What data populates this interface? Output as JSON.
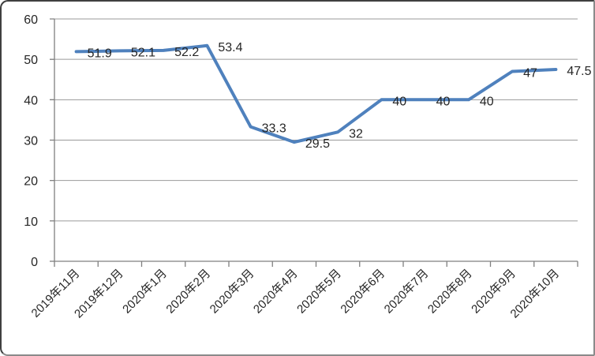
{
  "chart_data": {
    "type": "line",
    "title": "",
    "xlabel": "",
    "ylabel": "",
    "categories": [
      "2019年11月",
      "2019年12月",
      "2020年1月",
      "2020年2月",
      "2020年3月",
      "2020年4月",
      "2020年5月",
      "2020年6月",
      "2020年7月",
      "2020年8月",
      "2020年9月",
      "2020年10月"
    ],
    "series": [
      {
        "name": "series-1",
        "values": [
          51.9,
          52.1,
          52.2,
          53.4,
          33.3,
          29.5,
          32,
          40,
          40,
          40,
          47,
          47.5
        ],
        "data_labels": [
          "51.9",
          "52.1",
          "52.2",
          "53.4",
          "33.3",
          "29.5",
          "32",
          "40",
          "40",
          "40",
          "47",
          "47.5"
        ]
      }
    ],
    "ylim": [
      0,
      60
    ],
    "yticks": [
      0,
      10,
      20,
      30,
      40,
      50,
      60
    ],
    "grid": true,
    "legend": "none",
    "x_labels_rotation_deg": -45,
    "colors": {
      "line": "#4F81BD",
      "gridline": "#9a9a9a",
      "axis": "#808080",
      "tick": "#808080",
      "text": "#262626",
      "plot_background": "#ffffff"
    }
  }
}
